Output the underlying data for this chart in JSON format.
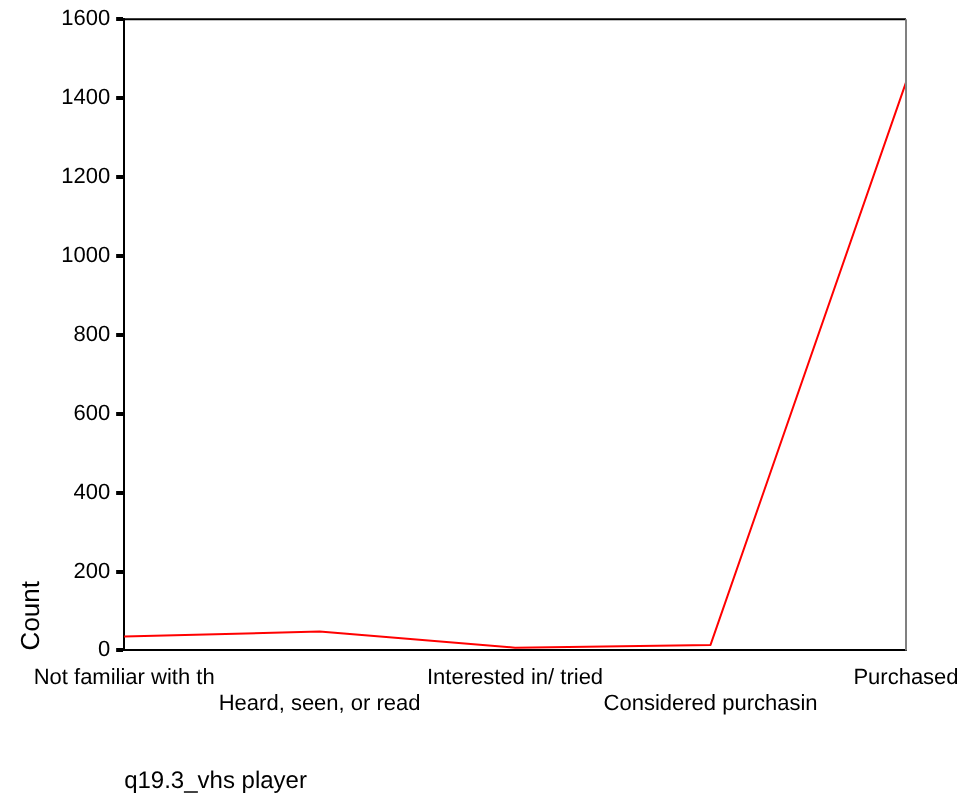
{
  "chart_data": {
    "type": "line",
    "xlabel": "q19.3_vhs player",
    "ylabel": "Count",
    "categories": [
      "Not familiar with th",
      "Heard, seen, or read",
      "Interested in/ tried",
      "Considered purchasin",
      "Purchased"
    ],
    "series": [
      {
        "color": "#ff0000",
        "values": [
          35,
          48,
          7,
          14,
          1440
        ]
      }
    ],
    "ylim": [
      0,
      1600
    ],
    "yticks": [
      0,
      200,
      400,
      600,
      800,
      1000,
      1200,
      1400,
      1600
    ],
    "grid": false,
    "legend": false,
    "marker": "none",
    "line_style": "solid"
  }
}
